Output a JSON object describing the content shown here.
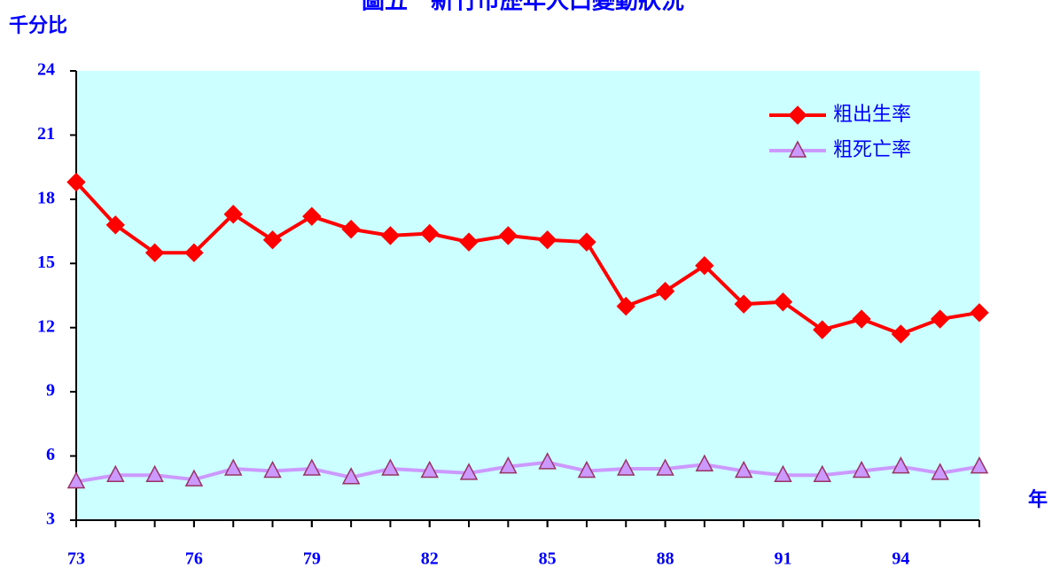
{
  "chart_data": {
    "type": "line",
    "title": "圖五　新竹市歷年人口變動狀況",
    "y_label": "千分比",
    "x_label": "年",
    "x": [
      73,
      74,
      75,
      76,
      77,
      78,
      79,
      80,
      81,
      82,
      83,
      84,
      85,
      86,
      87,
      88,
      89,
      90,
      91,
      92,
      93,
      94,
      95,
      96
    ],
    "series": [
      {
        "name": "粗出生率",
        "color": "#ff0000",
        "marker": "diamond",
        "values": [
          18.8,
          16.8,
          15.5,
          15.5,
          17.3,
          16.1,
          17.2,
          16.6,
          16.3,
          16.4,
          16.0,
          16.3,
          16.1,
          16.0,
          13.0,
          13.7,
          14.9,
          13.1,
          13.2,
          11.9,
          12.4,
          11.7,
          12.4,
          12.7
        ]
      },
      {
        "name": "粗死亡率",
        "color": "#cc99ff",
        "marker": "triangle",
        "values": [
          4.8,
          5.1,
          5.1,
          4.9,
          5.4,
          5.3,
          5.4,
          5.0,
          5.4,
          5.3,
          5.2,
          5.5,
          5.7,
          5.3,
          5.4,
          5.4,
          5.6,
          5.3,
          5.1,
          5.1,
          5.3,
          5.5,
          5.2,
          5.5
        ]
      }
    ],
    "xlim": [
      73,
      96
    ],
    "xticks": [
      73,
      76,
      79,
      82,
      85,
      88,
      91,
      94
    ],
    "ylim": [
      3,
      24
    ],
    "yticks": [
      3,
      6,
      9,
      12,
      15,
      18,
      21,
      24
    ],
    "plot_background": "#ccffff",
    "legend": "top-right"
  }
}
